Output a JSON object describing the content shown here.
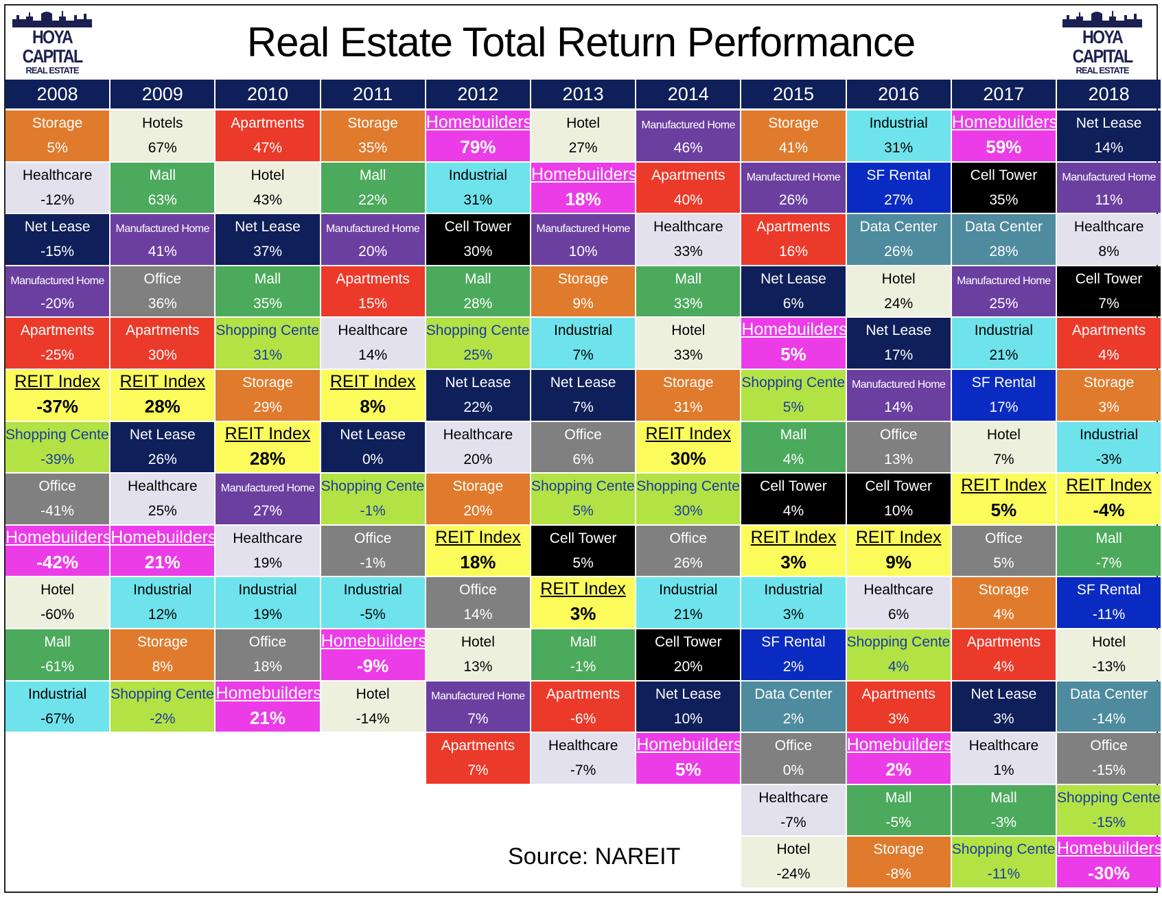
{
  "header": {
    "title": "Real Estate Total Return Performance",
    "logo_line1": "HOYA CAPITAL",
    "logo_line2": "REAL ESTATE",
    "source": "Source: NAREIT"
  },
  "colors": {
    "Storage": {
      "bg": "#e07b2e",
      "fg": "#ffffff"
    },
    "Hotels": {
      "bg": "#eef0de",
      "fg": "#000000"
    },
    "Hotel": {
      "bg": "#eef0de",
      "fg": "#000000"
    },
    "Apartments": {
      "bg": "#ec3a2a",
      "fg": "#ffffff"
    },
    "Homebuilders": {
      "bg": "#ec3ce8",
      "fg": "#ffffff"
    },
    "Manufactured Home": {
      "bg": "#6b3fa0",
      "fg": "#ffffff"
    },
    "Industrial": {
      "bg": "#6ee3ec",
      "fg": "#000000"
    },
    "Net Lease": {
      "bg": "#0f1f59",
      "fg": "#ffffff"
    },
    "Healthcare": {
      "bg": "#e3e1ee",
      "fg": "#000000"
    },
    "Mall": {
      "bg": "#4caa5c",
      "fg": "#ffffff"
    },
    "SF Rental": {
      "bg": "#0a2bc2",
      "fg": "#ffffff"
    },
    "Cell Tower": {
      "bg": "#000000",
      "fg": "#ffffff"
    },
    "Data Center": {
      "bg": "#4f8b9e",
      "fg": "#ffffff"
    },
    "Office": {
      "bg": "#808080",
      "fg": "#ffffff"
    },
    "Shopping Center": {
      "bg": "#b3e245",
      "fg": "#1a3ba0"
    },
    "REIT Index": {
      "bg": "#fbfb5b",
      "fg": "#000000"
    }
  },
  "chart_data": {
    "type": "table",
    "title": "Real Estate Total Return Performance",
    "years": [
      "2008",
      "2009",
      "2010",
      "2011",
      "2012",
      "2013",
      "2014",
      "2015",
      "2016",
      "2017",
      "2018"
    ],
    "columns": [
      [
        {
          "sector": "Storage",
          "label": "Storage",
          "value": "5%"
        },
        {
          "sector": "Healthcare",
          "label": "Healthcare",
          "value": "-12%"
        },
        {
          "sector": "Net Lease",
          "label": "Net Lease",
          "value": "-15%"
        },
        {
          "sector": "Manufactured Home",
          "label": "Manufactured Home",
          "value": "-20%"
        },
        {
          "sector": "Apartments",
          "label": "Apartments",
          "value": "-25%"
        },
        {
          "sector": "REIT Index",
          "label": "REIT Index",
          "value": "-37%"
        },
        {
          "sector": "Shopping Center",
          "label": "Shopping Center",
          "value": "-39%"
        },
        {
          "sector": "Office",
          "label": "Office",
          "value": "-41%"
        },
        {
          "sector": "Homebuilders",
          "label": "Homebuilders",
          "value": "-42%"
        },
        {
          "sector": "Hotel",
          "label": "Hotel",
          "value": "-60%"
        },
        {
          "sector": "Mall",
          "label": "Mall",
          "value": "-61%"
        },
        {
          "sector": "Industrial",
          "label": "Industrial",
          "value": "-67%"
        }
      ],
      [
        {
          "sector": "Hotels",
          "label": "Hotels",
          "value": "67%"
        },
        {
          "sector": "Mall",
          "label": "Mall",
          "value": "63%"
        },
        {
          "sector": "Manufactured Home",
          "label": "Manufactured Home",
          "value": "41%"
        },
        {
          "sector": "Office",
          "label": "Office",
          "value": "36%"
        },
        {
          "sector": "Apartments",
          "label": "Apartments",
          "value": "30%"
        },
        {
          "sector": "REIT Index",
          "label": "REIT Index",
          "value": "28%"
        },
        {
          "sector": "Net Lease",
          "label": "Net Lease",
          "value": "26%"
        },
        {
          "sector": "Healthcare",
          "label": "Healthcare",
          "value": "25%"
        },
        {
          "sector": "Homebuilders",
          "label": "Homebuilders",
          "value": "21%"
        },
        {
          "sector": "Industrial",
          "label": "Industrial",
          "value": "12%"
        },
        {
          "sector": "Storage",
          "label": "Storage",
          "value": "8%"
        },
        {
          "sector": "Shopping Center",
          "label": "Shopping Center",
          "value": "-2%"
        }
      ],
      [
        {
          "sector": "Apartments",
          "label": "Apartments",
          "value": "47%"
        },
        {
          "sector": "Hotel",
          "label": "Hotel",
          "value": "43%"
        },
        {
          "sector": "Net Lease",
          "label": "Net Lease",
          "value": "37%"
        },
        {
          "sector": "Mall",
          "label": "Mall",
          "value": "35%"
        },
        {
          "sector": "Shopping Center",
          "label": "Shopping Center",
          "value": "31%"
        },
        {
          "sector": "Storage",
          "label": "Storage",
          "value": "29%"
        },
        {
          "sector": "REIT Index",
          "label": "REIT Index",
          "value": "28%"
        },
        {
          "sector": "Manufactured Home",
          "label": "Manufactured Home",
          "value": "27%"
        },
        {
          "sector": "Healthcare",
          "label": "Healthcare",
          "value": "19%"
        },
        {
          "sector": "Industrial",
          "label": "Industrial",
          "value": "19%"
        },
        {
          "sector": "Office",
          "label": "Office",
          "value": "18%"
        },
        {
          "sector": "Homebuilders",
          "label": "Homebuilders",
          "value": "21%"
        }
      ],
      [
        {
          "sector": "Storage",
          "label": "Storage",
          "value": "35%"
        },
        {
          "sector": "Mall",
          "label": "Mall",
          "value": "22%"
        },
        {
          "sector": "Manufactured Home",
          "label": "Manufactured Home",
          "value": "20%"
        },
        {
          "sector": "Apartments",
          "label": "Apartments",
          "value": "15%"
        },
        {
          "sector": "Healthcare",
          "label": "Healthcare",
          "value": "14%"
        },
        {
          "sector": "REIT Index",
          "label": "REIT Index",
          "value": "8%"
        },
        {
          "sector": "Net Lease",
          "label": "Net Lease",
          "value": "0%"
        },
        {
          "sector": "Shopping Center",
          "label": "Shopping Center",
          "value": "-1%"
        },
        {
          "sector": "Office",
          "label": "Office",
          "value": "-1%"
        },
        {
          "sector": "Industrial",
          "label": "Industrial",
          "value": "-5%"
        },
        {
          "sector": "Homebuilders",
          "label": "Homebuilders",
          "value": "-9%"
        },
        {
          "sector": "Hotel",
          "label": "Hotel",
          "value": "-14%"
        }
      ],
      [
        {
          "sector": "Homebuilders",
          "label": "Homebuilders",
          "value": "79%"
        },
        {
          "sector": "Industrial",
          "label": "Industrial",
          "value": "31%"
        },
        {
          "sector": "Cell Tower",
          "label": "Cell Tower",
          "value": "30%"
        },
        {
          "sector": "Mall",
          "label": "Mall",
          "value": "28%"
        },
        {
          "sector": "Shopping Center",
          "label": "Shopping Center",
          "value": "25%"
        },
        {
          "sector": "Net Lease",
          "label": "Net Lease",
          "value": "22%"
        },
        {
          "sector": "Healthcare",
          "label": "Healthcare",
          "value": "20%"
        },
        {
          "sector": "Storage",
          "label": "Storage",
          "value": "20%"
        },
        {
          "sector": "REIT Index",
          "label": "REIT Index",
          "value": "18%"
        },
        {
          "sector": "Office",
          "label": "Office",
          "value": "14%"
        },
        {
          "sector": "Hotel",
          "label": "Hotel",
          "value": "13%"
        },
        {
          "sector": "Manufactured Home",
          "label": "Manufactured Home",
          "value": "7%"
        },
        {
          "sector": "Apartments",
          "label": "Apartments",
          "value": "7%"
        }
      ],
      [
        {
          "sector": "Hotel",
          "label": "Hotel",
          "value": "27%"
        },
        {
          "sector": "Homebuilders",
          "label": "Homebuilders",
          "value": "18%"
        },
        {
          "sector": "Manufactured Home",
          "label": "Manufactured Home",
          "value": "10%"
        },
        {
          "sector": "Storage",
          "label": "Storage",
          "value": "9%"
        },
        {
          "sector": "Industrial",
          "label": "Industrial",
          "value": "7%"
        },
        {
          "sector": "Net Lease",
          "label": "Net Lease",
          "value": "7%"
        },
        {
          "sector": "Office",
          "label": "Office",
          "value": "6%"
        },
        {
          "sector": "Shopping Center",
          "label": "Shopping Center",
          "value": "5%"
        },
        {
          "sector": "Cell Tower",
          "label": "Cell Tower",
          "value": "5%"
        },
        {
          "sector": "REIT Index",
          "label": "REIT Index",
          "value": "3%"
        },
        {
          "sector": "Mall",
          "label": "Mall",
          "value": "-1%"
        },
        {
          "sector": "Apartments",
          "label": "Apartments",
          "value": "-6%"
        },
        {
          "sector": "Healthcare",
          "label": "Healthcare",
          "value": "-7%"
        }
      ],
      [
        {
          "sector": "Manufactured Home",
          "label": "Manufactured Home",
          "value": "46%"
        },
        {
          "sector": "Apartments",
          "label": "Apartments",
          "value": "40%"
        },
        {
          "sector": "Healthcare",
          "label": "Healthcare",
          "value": "33%"
        },
        {
          "sector": "Mall",
          "label": "Mall",
          "value": "33%"
        },
        {
          "sector": "Hotel",
          "label": "Hotel",
          "value": "33%"
        },
        {
          "sector": "Storage",
          "label": "Storage",
          "value": "31%"
        },
        {
          "sector": "REIT Index",
          "label": "REIT Index",
          "value": "30%"
        },
        {
          "sector": "Shopping Center",
          "label": "Shopping Center",
          "value": "30%"
        },
        {
          "sector": "Office",
          "label": "Office",
          "value": "26%"
        },
        {
          "sector": "Industrial",
          "label": "Industrial",
          "value": "21%"
        },
        {
          "sector": "Cell Tower",
          "label": "Cell Tower",
          "value": "20%"
        },
        {
          "sector": "Net Lease",
          "label": "Net Lease",
          "value": "10%"
        },
        {
          "sector": "Homebuilders",
          "label": "Homebuilders",
          "value": "5%"
        }
      ],
      [
        {
          "sector": "Storage",
          "label": "Storage",
          "value": "41%"
        },
        {
          "sector": "Manufactured Home",
          "label": "Manufactured Home",
          "value": "26%"
        },
        {
          "sector": "Apartments",
          "label": "Apartments",
          "value": "16%"
        },
        {
          "sector": "Net Lease",
          "label": "Net Lease",
          "value": "6%"
        },
        {
          "sector": "Homebuilders",
          "label": "Homebuilders",
          "value": "5%"
        },
        {
          "sector": "Shopping Center",
          "label": "Shopping Center",
          "value": "5%"
        },
        {
          "sector": "Mall",
          "label": "Mall",
          "value": "4%"
        },
        {
          "sector": "Cell Tower",
          "label": "Cell Tower",
          "value": "4%"
        },
        {
          "sector": "REIT Index",
          "label": "REIT Index",
          "value": "3%"
        },
        {
          "sector": "Industrial",
          "label": "Industrial",
          "value": "3%"
        },
        {
          "sector": "SF Rental",
          "label": "SF Rental",
          "value": "2%"
        },
        {
          "sector": "Data Center",
          "label": "Data Center",
          "value": "2%"
        },
        {
          "sector": "Office",
          "label": "Office",
          "value": "0%"
        },
        {
          "sector": "Healthcare",
          "label": "Healthcare",
          "value": "-7%"
        },
        {
          "sector": "Hotel",
          "label": "Hotel",
          "value": "-24%"
        }
      ],
      [
        {
          "sector": "Industrial",
          "label": "Industrial",
          "value": "31%"
        },
        {
          "sector": "SF Rental",
          "label": "SF Rental",
          "value": "27%"
        },
        {
          "sector": "Data Center",
          "label": "Data Center",
          "value": "26%"
        },
        {
          "sector": "Hotel",
          "label": "Hotel",
          "value": "24%"
        },
        {
          "sector": "Net Lease",
          "label": "Net Lease",
          "value": "17%"
        },
        {
          "sector": "Manufactured Home",
          "label": "Manufactured Home",
          "value": "14%"
        },
        {
          "sector": "Office",
          "label": "Office",
          "value": "13%"
        },
        {
          "sector": "Cell Tower",
          "label": "Cell Tower",
          "value": "10%"
        },
        {
          "sector": "REIT Index",
          "label": "REIT Index",
          "value": "9%"
        },
        {
          "sector": "Healthcare",
          "label": "Healthcare",
          "value": "6%"
        },
        {
          "sector": "Shopping Center",
          "label": "Shopping Center",
          "value": "4%"
        },
        {
          "sector": "Apartments",
          "label": "Apartments",
          "value": "3%"
        },
        {
          "sector": "Homebuilders",
          "label": "Homebuilders",
          "value": "2%"
        },
        {
          "sector": "Mall",
          "label": "Mall",
          "value": "-5%"
        },
        {
          "sector": "Storage",
          "label": "Storage",
          "value": "-8%"
        }
      ],
      [
        {
          "sector": "Homebuilders",
          "label": "Homebuilders",
          "value": "59%"
        },
        {
          "sector": "Cell Tower",
          "label": "Cell Tower",
          "value": "35%"
        },
        {
          "sector": "Data Center",
          "label": "Data Center",
          "value": "28%"
        },
        {
          "sector": "Manufactured Home",
          "label": "Manufactured Home",
          "value": "25%"
        },
        {
          "sector": "Industrial",
          "label": "Industrial",
          "value": "21%"
        },
        {
          "sector": "SF Rental",
          "label": "SF Rental",
          "value": "17%"
        },
        {
          "sector": "Hotel",
          "label": "Hotel",
          "value": "7%"
        },
        {
          "sector": "REIT Index",
          "label": "REIT Index",
          "value": "5%"
        },
        {
          "sector": "Office",
          "label": "Office",
          "value": "5%"
        },
        {
          "sector": "Storage",
          "label": "Storage",
          "value": "4%"
        },
        {
          "sector": "Apartments",
          "label": "Apartments",
          "value": "4%"
        },
        {
          "sector": "Net Lease",
          "label": "Net Lease",
          "value": "3%"
        },
        {
          "sector": "Healthcare",
          "label": "Healthcare",
          "value": "1%"
        },
        {
          "sector": "Mall",
          "label": "Mall",
          "value": "-3%"
        },
        {
          "sector": "Shopping Center",
          "label": "Shopping Center",
          "value": "-11%"
        }
      ],
      [
        {
          "sector": "Net Lease",
          "label": "Net Lease",
          "value": "14%"
        },
        {
          "sector": "Manufactured Home",
          "label": "Manufactured Home",
          "value": "11%"
        },
        {
          "sector": "Healthcare",
          "label": "Healthcare",
          "value": "8%"
        },
        {
          "sector": "Cell Tower",
          "label": "Cell Tower",
          "value": "7%"
        },
        {
          "sector": "Apartments",
          "label": "Apartments",
          "value": "4%"
        },
        {
          "sector": "Storage",
          "label": "Storage",
          "value": "3%"
        },
        {
          "sector": "Industrial",
          "label": "Industrial",
          "value": "-3%"
        },
        {
          "sector": "REIT Index",
          "label": "REIT Index",
          "value": "-4%"
        },
        {
          "sector": "Mall",
          "label": "Mall",
          "value": "-7%"
        },
        {
          "sector": "SF Rental",
          "label": "SF Rental",
          "value": "-11%"
        },
        {
          "sector": "Hotel",
          "label": "Hotel",
          "value": "-13%"
        },
        {
          "sector": "Data Center",
          "label": "Data Center",
          "value": "-14%"
        },
        {
          "sector": "Office",
          "label": "Office",
          "value": "-15%"
        },
        {
          "sector": "Shopping Center",
          "label": "Shopping Center",
          "value": "-15%"
        },
        {
          "sector": "Homebuilders",
          "label": "Homebuilders",
          "value": "-30%"
        }
      ]
    ]
  }
}
